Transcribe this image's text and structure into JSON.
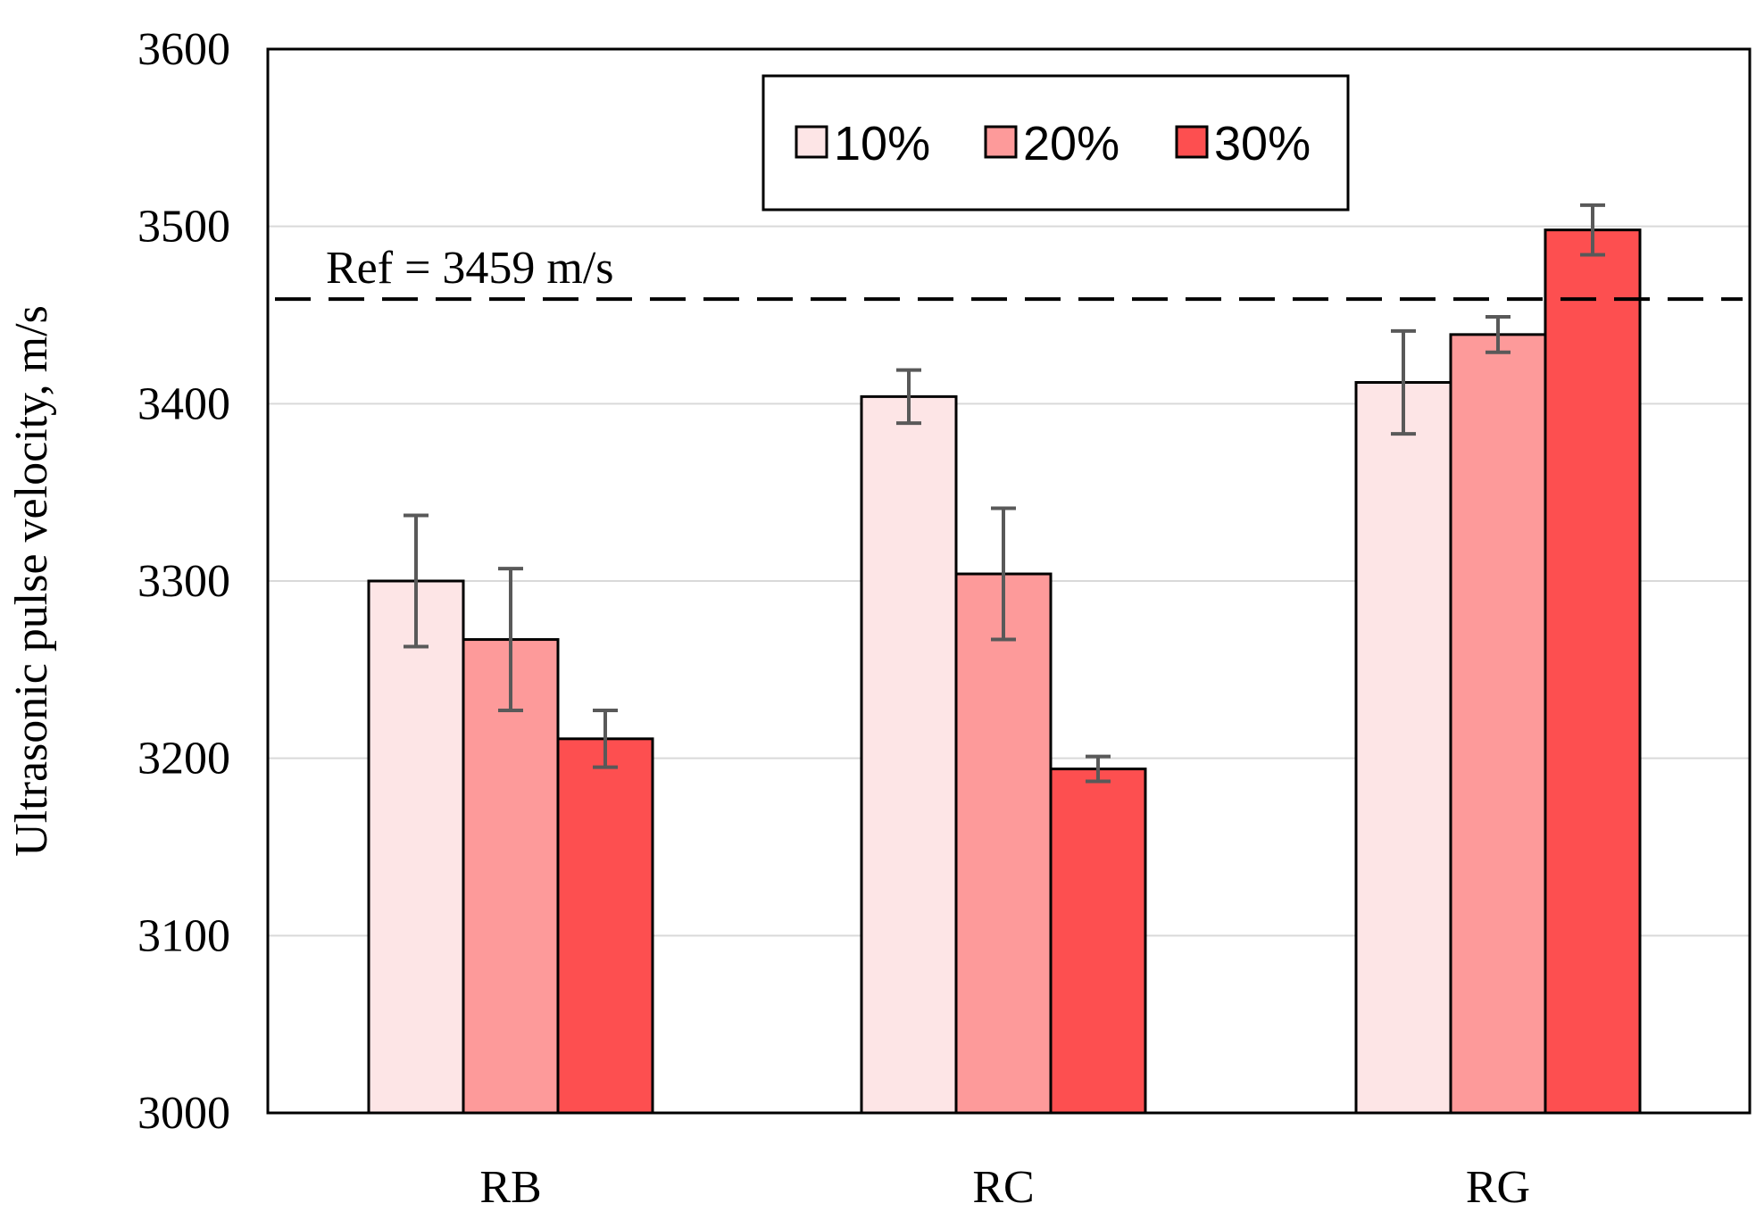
{
  "chart_data": {
    "type": "bar",
    "title": "",
    "xlabel": "",
    "ylabel": "Ultrasonic pulse velocity, m/s",
    "ylim": [
      3000,
      3600
    ],
    "yticks": [
      3000,
      3100,
      3200,
      3300,
      3400,
      3500,
      3600
    ],
    "ytick_labels": [
      "3000",
      "3100",
      "3200",
      "3300",
      "3400",
      "3500",
      "3600"
    ],
    "grid": true,
    "legend_position": "top-center",
    "categories": [
      "RB",
      "RC",
      "RG"
    ],
    "series": [
      {
        "name": "10%",
        "color": "#fde5e6",
        "values": [
          3300,
          3404,
          3412
        ],
        "errors": [
          37,
          15,
          29
        ]
      },
      {
        "name": "20%",
        "color": "#fd9a9a",
        "values": [
          3267,
          3304,
          3439
        ],
        "errors": [
          40,
          37,
          10
        ]
      },
      {
        "name": "30%",
        "color": "#fd4f50",
        "values": [
          3211,
          3194,
          3498
        ],
        "errors": [
          16,
          7,
          14
        ]
      }
    ],
    "reference": {
      "label": "Ref = 3459 m/s",
      "value": 3459
    }
  }
}
